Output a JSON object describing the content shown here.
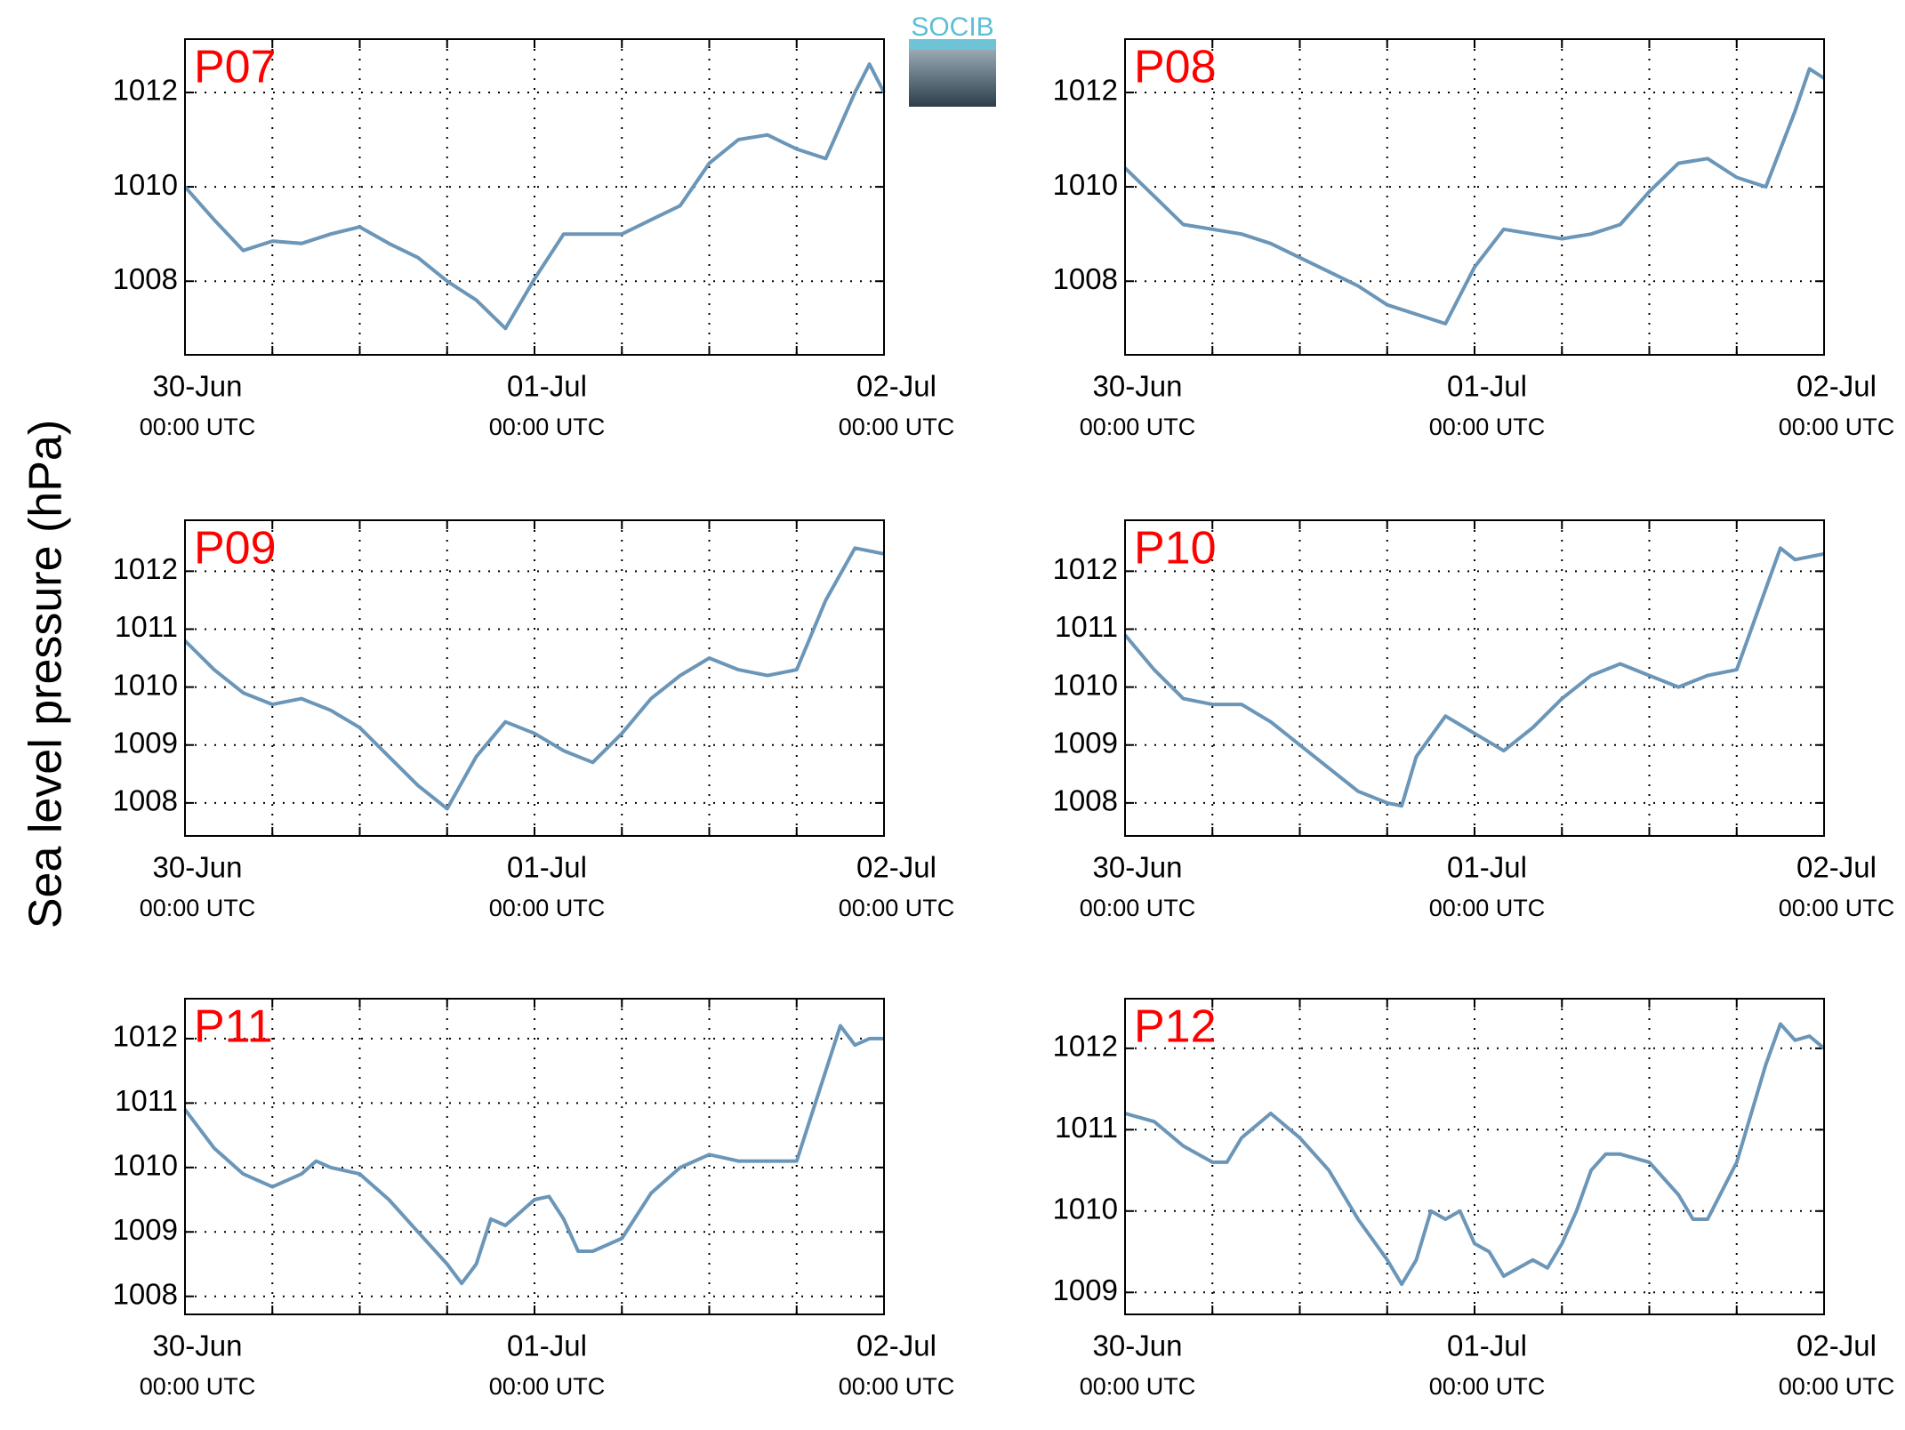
{
  "logo": "SOCIB",
  "ylabel": "Sea level pressure (hPa)",
  "chart_data": [
    {
      "type": "line",
      "title": "P07",
      "title_color": "#ff0000",
      "color": "#6b96b8",
      "grid": true,
      "x": [
        0,
        2,
        4,
        6,
        8,
        10,
        12,
        14,
        16,
        18,
        20,
        22,
        24,
        26,
        28,
        30,
        32,
        34,
        36,
        38,
        40,
        42,
        44,
        46,
        47,
        48
      ],
      "values": [
        1010.0,
        1009.3,
        1008.65,
        1008.85,
        1008.8,
        1009.0,
        1009.15,
        1008.8,
        1008.5,
        1008.0,
        1007.6,
        1007.0,
        1008.05,
        1009.0,
        1009.0,
        1009.0,
        1009.3,
        1009.6,
        1010.5,
        1011.0,
        1011.1,
        1010.8,
        1010.6,
        1012.0,
        1012.6,
        1012.0
      ],
      "xlim": [
        0,
        48
      ],
      "ylim": [
        1006.44,
        1013.13
      ],
      "yticks": [
        1008,
        1010,
        1012
      ],
      "xticks": [
        {
          "value": 0,
          "label": "30-Jun",
          "sublabel": "00:00 UTC"
        },
        {
          "value": 6,
          "label": null
        },
        {
          "value": 12,
          "label": null
        },
        {
          "value": 18,
          "label": null
        },
        {
          "value": 24,
          "label": "01-Jul",
          "sublabel": "00:00 UTC"
        },
        {
          "value": 30,
          "label": null
        },
        {
          "value": 36,
          "label": null
        },
        {
          "value": 42,
          "label": null
        },
        {
          "value": 48,
          "label": "02-Jul",
          "sublabel": "00:00 UTC"
        }
      ]
    },
    {
      "type": "line",
      "title": "P08",
      "title_color": "#ff0000",
      "color": "#6b96b8",
      "grid": true,
      "x": [
        0,
        2,
        4,
        6,
        8,
        10,
        12,
        14,
        16,
        18,
        20,
        22,
        24,
        26,
        28,
        30,
        32,
        34,
        36,
        38,
        40,
        42,
        44,
        46,
        47,
        48
      ],
      "values": [
        1010.4,
        1009.8,
        1009.2,
        1009.1,
        1009.0,
        1008.8,
        1008.5,
        1008.2,
        1007.9,
        1007.5,
        1007.3,
        1007.1,
        1008.3,
        1009.1,
        1009.0,
        1008.9,
        1009.0,
        1009.2,
        1009.9,
        1010.5,
        1010.6,
        1010.2,
        1010.0,
        1011.6,
        1012.5,
        1012.3
      ],
      "xlim": [
        0,
        48
      ],
      "ylim": [
        1006.44,
        1013.13
      ],
      "yticks": [
        1008,
        1010,
        1012
      ],
      "xticks": [
        {
          "value": 0,
          "label": "30-Jun",
          "sublabel": "00:00 UTC"
        },
        {
          "value": 6,
          "label": null
        },
        {
          "value": 12,
          "label": null
        },
        {
          "value": 18,
          "label": null
        },
        {
          "value": 24,
          "label": "01-Jul",
          "sublabel": "00:00 UTC"
        },
        {
          "value": 30,
          "label": null
        },
        {
          "value": 36,
          "label": null
        },
        {
          "value": 42,
          "label": null
        },
        {
          "value": 48,
          "label": "02-Jul",
          "sublabel": "00:00 UTC"
        }
      ]
    },
    {
      "type": "line",
      "title": "P09",
      "title_color": "#ff0000",
      "color": "#6b96b8",
      "grid": true,
      "x": [
        0,
        2,
        4,
        6,
        8,
        10,
        12,
        14,
        16,
        18,
        20,
        22,
        24,
        26,
        28,
        30,
        32,
        34,
        36,
        38,
        40,
        42,
        44,
        46,
        48
      ],
      "values": [
        1010.8,
        1010.3,
        1009.9,
        1009.7,
        1009.8,
        1009.6,
        1009.3,
        1008.8,
        1008.3,
        1007.9,
        1008.8,
        1009.4,
        1009.2,
        1008.9,
        1008.7,
        1009.2,
        1009.8,
        1010.2,
        1010.5,
        1010.3,
        1010.2,
        1010.3,
        1011.5,
        1012.4,
        1012.3
      ],
      "xlim": [
        0,
        48
      ],
      "ylim": [
        1007.43,
        1012.88
      ],
      "yticks": [
        1008,
        1009,
        1010,
        1011,
        1012
      ],
      "xticks": [
        {
          "value": 0,
          "label": "30-Jun",
          "sublabel": "00:00 UTC"
        },
        {
          "value": 6,
          "label": null
        },
        {
          "value": 12,
          "label": null
        },
        {
          "value": 18,
          "label": null
        },
        {
          "value": 24,
          "label": "01-Jul",
          "sublabel": "00:00 UTC"
        },
        {
          "value": 30,
          "label": null
        },
        {
          "value": 36,
          "label": null
        },
        {
          "value": 42,
          "label": null
        },
        {
          "value": 48,
          "label": "02-Jul",
          "sublabel": "00:00 UTC"
        }
      ]
    },
    {
      "type": "line",
      "title": "P10",
      "title_color": "#ff0000",
      "color": "#6b96b8",
      "grid": true,
      "x": [
        0,
        2,
        4,
        6,
        8,
        10,
        12,
        14,
        16,
        18,
        19,
        20,
        22,
        24,
        26,
        28,
        30,
        32,
        34,
        36,
        38,
        40,
        42,
        44,
        45,
        46,
        48
      ],
      "values": [
        1010.9,
        1010.3,
        1009.8,
        1009.7,
        1009.7,
        1009.4,
        1009.0,
        1008.6,
        1008.2,
        1008.0,
        1007.95,
        1008.8,
        1009.5,
        1009.2,
        1008.9,
        1009.3,
        1009.8,
        1010.2,
        1010.4,
        1010.2,
        1010.0,
        1010.2,
        1010.3,
        1011.7,
        1012.4,
        1012.2,
        1012.3
      ],
      "xlim": [
        0,
        48
      ],
      "ylim": [
        1007.43,
        1012.88
      ],
      "yticks": [
        1008,
        1009,
        1010,
        1011,
        1012
      ],
      "xticks": [
        {
          "value": 0,
          "label": "30-Jun",
          "sublabel": "00:00 UTC"
        },
        {
          "value": 6,
          "label": null
        },
        {
          "value": 12,
          "label": null
        },
        {
          "value": 18,
          "label": null
        },
        {
          "value": 24,
          "label": "01-Jul",
          "sublabel": "00:00 UTC"
        },
        {
          "value": 30,
          "label": null
        },
        {
          "value": 36,
          "label": null
        },
        {
          "value": 42,
          "label": null
        },
        {
          "value": 48,
          "label": "02-Jul",
          "sublabel": "00:00 UTC"
        }
      ]
    },
    {
      "type": "line",
      "title": "P11",
      "title_color": "#ff0000",
      "color": "#6b96b8",
      "grid": true,
      "x": [
        0,
        2,
        4,
        6,
        8,
        9,
        10,
        12,
        14,
        16,
        18,
        19,
        20,
        21,
        22,
        24,
        25,
        26,
        27,
        28,
        30,
        32,
        34,
        36,
        38,
        40,
        42,
        43,
        45,
        46,
        47,
        48
      ],
      "values": [
        1010.9,
        1010.3,
        1009.9,
        1009.7,
        1009.9,
        1010.1,
        1010.0,
        1009.9,
        1009.5,
        1009.0,
        1008.5,
        1008.2,
        1008.5,
        1009.2,
        1009.1,
        1009.5,
        1009.55,
        1009.2,
        1008.7,
        1008.7,
        1008.9,
        1009.6,
        1010.0,
        1010.2,
        1010.1,
        1010.1,
        1010.1,
        1010.8,
        1012.2,
        1011.9,
        1012.0,
        1012.0
      ],
      "xlim": [
        0,
        48
      ],
      "ylim": [
        1007.72,
        1012.62
      ],
      "yticks": [
        1008,
        1009,
        1010,
        1011,
        1012
      ],
      "xticks": [
        {
          "value": 0,
          "label": "30-Jun",
          "sublabel": "00:00 UTC"
        },
        {
          "value": 6,
          "label": null
        },
        {
          "value": 12,
          "label": null
        },
        {
          "value": 18,
          "label": null
        },
        {
          "value": 24,
          "label": "01-Jul",
          "sublabel": "00:00 UTC"
        },
        {
          "value": 30,
          "label": null
        },
        {
          "value": 36,
          "label": null
        },
        {
          "value": 42,
          "label": null
        },
        {
          "value": 48,
          "label": "02-Jul",
          "sublabel": "00:00 UTC"
        }
      ]
    },
    {
      "type": "line",
      "title": "P12",
      "title_color": "#ff0000",
      "color": "#6b96b8",
      "grid": true,
      "x": [
        0,
        2,
        4,
        6,
        7,
        8,
        10,
        12,
        14,
        16,
        18,
        19,
        20,
        21,
        22,
        23,
        24,
        25,
        26,
        28,
        29,
        30,
        31,
        32,
        33,
        34,
        36,
        38,
        39,
        40,
        42,
        44,
        45,
        46,
        47,
        48
      ],
      "values": [
        1011.2,
        1011.1,
        1010.8,
        1010.6,
        1010.6,
        1010.9,
        1011.2,
        1010.9,
        1010.5,
        1009.9,
        1009.4,
        1009.1,
        1009.4,
        1010.0,
        1009.9,
        1010.0,
        1009.6,
        1009.5,
        1009.2,
        1009.4,
        1009.3,
        1009.6,
        1010.0,
        1010.5,
        1010.7,
        1010.7,
        1010.6,
        1010.2,
        1009.9,
        1009.9,
        1010.6,
        1011.8,
        1012.3,
        1012.1,
        1012.15,
        1012.0
      ],
      "xlim": [
        0,
        48
      ],
      "ylim": [
        1008.73,
        1012.61
      ],
      "yticks": [
        1009,
        1010,
        1011,
        1012
      ],
      "xticks": [
        {
          "value": 0,
          "label": "30-Jun",
          "sublabel": "00:00 UTC"
        },
        {
          "value": 6,
          "label": null
        },
        {
          "value": 12,
          "label": null
        },
        {
          "value": 18,
          "label": null
        },
        {
          "value": 24,
          "label": "01-Jul",
          "sublabel": "00:00 UTC"
        },
        {
          "value": 30,
          "label": null
        },
        {
          "value": 36,
          "label": null
        },
        {
          "value": 42,
          "label": null
        },
        {
          "value": 48,
          "label": "02-Jul",
          "sublabel": "00:00 UTC"
        }
      ]
    }
  ]
}
